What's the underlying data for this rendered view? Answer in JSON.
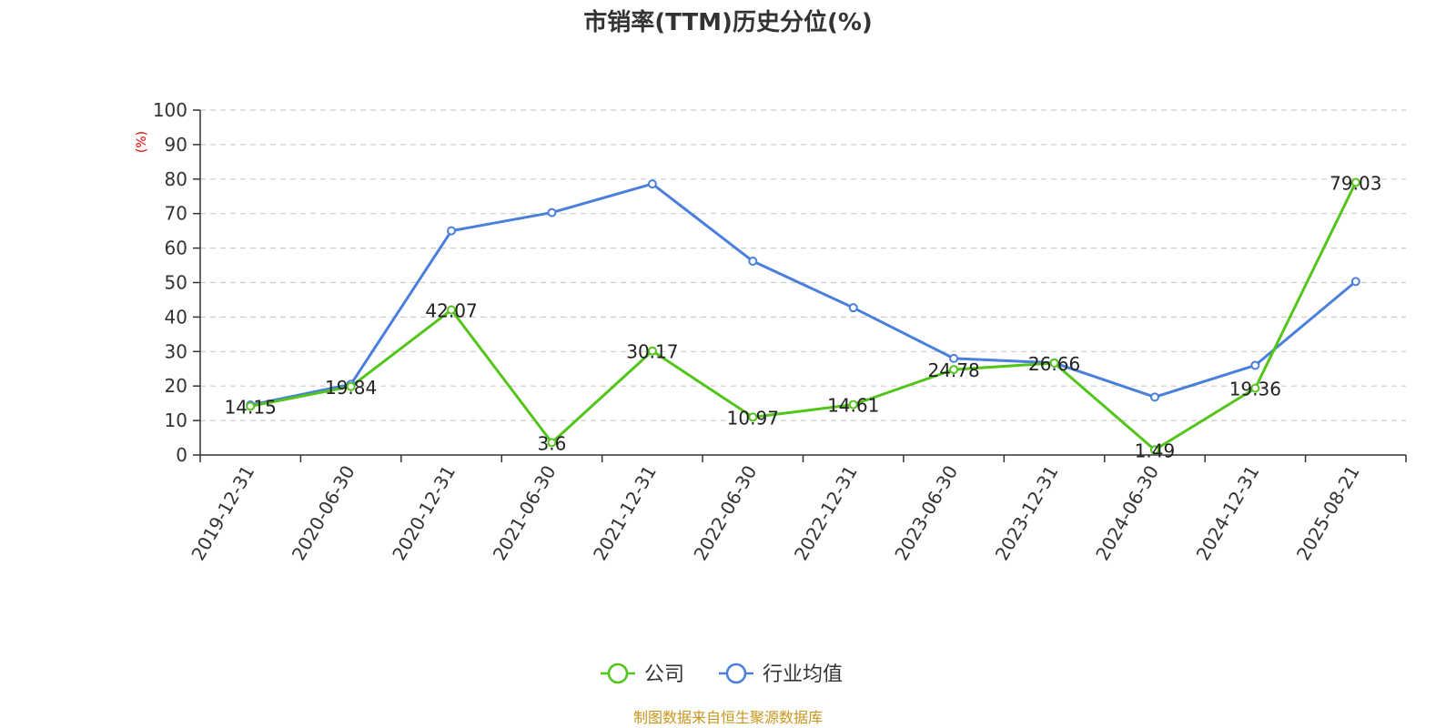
{
  "chart_data": {
    "type": "line",
    "title": "市销率(TTM)历史分位(%)",
    "ylabel": "(%)",
    "ylim": [
      0,
      100
    ],
    "yticks": [
      0,
      10,
      20,
      30,
      40,
      50,
      60,
      70,
      80,
      90,
      100
    ],
    "grid": true,
    "categories": [
      "2019-12-31",
      "2020-06-30",
      "2020-12-31",
      "2021-06-30",
      "2021-12-31",
      "2022-06-30",
      "2022-12-31",
      "2023-06-30",
      "2023-12-31",
      "2024-06-30",
      "2024-12-31",
      "2025-08-21"
    ],
    "series": [
      {
        "name": "公司",
        "color": "#52c41a",
        "values": [
          14.15,
          19.84,
          42.07,
          3.6,
          30.17,
          10.97,
          14.61,
          24.78,
          26.66,
          1.49,
          19.36,
          79.03
        ],
        "labels": [
          "14.15",
          "19.84",
          "42.07",
          "3.6",
          "30.17",
          "10.97",
          "14.61",
          "24.78",
          "26.66",
          "1.49",
          "19.36",
          "79.03"
        ]
      },
      {
        "name": "行业均值",
        "color": "#4a7fdc",
        "values": [
          14.5,
          20.5,
          65,
          70.3,
          78.6,
          56.2,
          42.7,
          28,
          26.7,
          16.8,
          26,
          50.3
        ]
      }
    ],
    "legend_position": "bottom-center",
    "source": "制图数据来自恒生聚源数据库"
  }
}
